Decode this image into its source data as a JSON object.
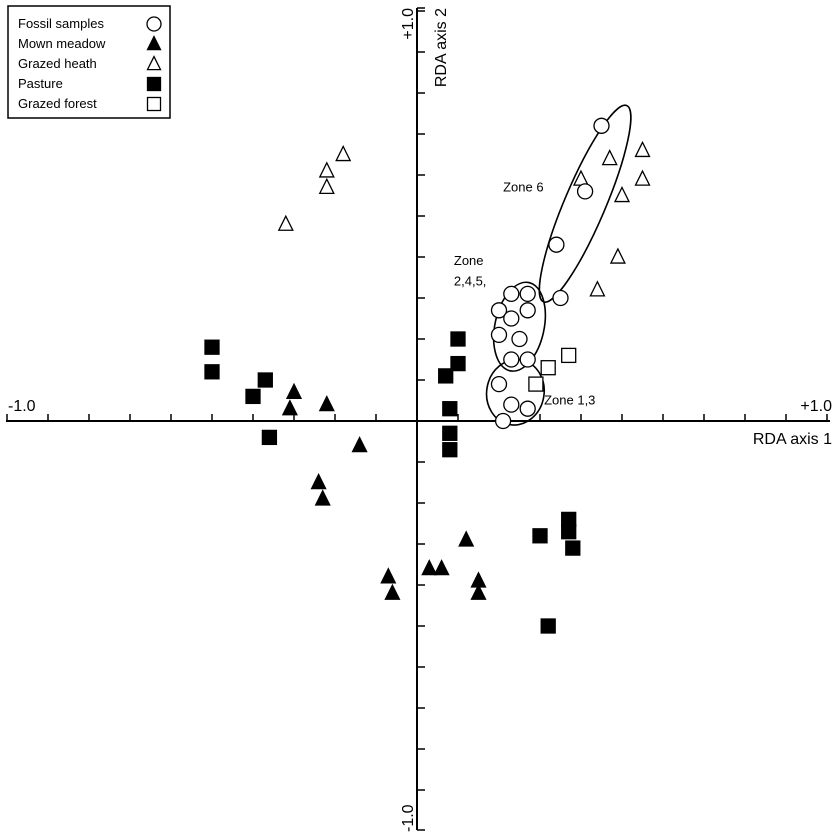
{
  "chart_data": {
    "type": "scatter",
    "title": "",
    "xlabel": "RDA axis 1",
    "ylabel": "RDA axis 2",
    "xlim": [
      -1.0,
      1.0
    ],
    "ylim": [
      -1.0,
      1.0
    ],
    "x_tick_labels": {
      "min": "-1.0",
      "max": "+1.0"
    },
    "y_tick_labels": {
      "min": "-1.0",
      "max": "+1.0"
    },
    "grid": false,
    "legend_position": "top-left",
    "series": [
      {
        "name": "Fossil samples",
        "marker": "circle-open",
        "points": [
          [
            0.45,
            0.72
          ],
          [
            0.41,
            0.56
          ],
          [
            0.34,
            0.43
          ],
          [
            0.35,
            0.3
          ],
          [
            0.23,
            0.31
          ],
          [
            0.27,
            0.31
          ],
          [
            0.2,
            0.27
          ],
          [
            0.27,
            0.27
          ],
          [
            0.23,
            0.25
          ],
          [
            0.2,
            0.21
          ],
          [
            0.25,
            0.2
          ],
          [
            0.23,
            0.15
          ],
          [
            0.27,
            0.15
          ],
          [
            0.2,
            0.09
          ],
          [
            0.23,
            0.04
          ],
          [
            0.27,
            0.03
          ],
          [
            0.21,
            -0.0
          ]
        ]
      },
      {
        "name": "Mown meadow",
        "marker": "triangle-filled",
        "points": [
          [
            -0.3,
            0.07
          ],
          [
            -0.31,
            0.03
          ],
          [
            -0.22,
            0.04
          ],
          [
            -0.14,
            -0.06
          ],
          [
            -0.24,
            -0.15
          ],
          [
            -0.23,
            -0.19
          ],
          [
            0.12,
            -0.29
          ],
          [
            0.06,
            -0.36
          ],
          [
            0.03,
            -0.36
          ],
          [
            -0.07,
            -0.38
          ],
          [
            -0.06,
            -0.42
          ],
          [
            0.15,
            -0.39
          ],
          [
            0.15,
            -0.42
          ]
        ]
      },
      {
        "name": "Grazed heath",
        "marker": "triangle-open",
        "points": [
          [
            -0.18,
            0.65
          ],
          [
            -0.22,
            0.61
          ],
          [
            -0.22,
            0.57
          ],
          [
            -0.32,
            0.48
          ],
          [
            0.47,
            0.64
          ],
          [
            0.4,
            0.59
          ],
          [
            0.55,
            0.66
          ],
          [
            0.55,
            0.59
          ],
          [
            0.5,
            0.55
          ],
          [
            0.49,
            0.4
          ],
          [
            0.44,
            0.32
          ]
        ]
      },
      {
        "name": "Pasture",
        "marker": "square-filled",
        "points": [
          [
            -0.5,
            0.18
          ],
          [
            -0.5,
            0.12
          ],
          [
            -0.37,
            0.1
          ],
          [
            -0.4,
            0.06
          ],
          [
            -0.36,
            -0.04
          ],
          [
            0.1,
            0.2
          ],
          [
            0.1,
            0.14
          ],
          [
            0.07,
            0.11
          ],
          [
            0.08,
            0.03
          ],
          [
            0.08,
            -0.03
          ],
          [
            0.08,
            -0.07
          ],
          [
            0.3,
            -0.28
          ],
          [
            0.37,
            -0.24
          ],
          [
            0.37,
            -0.27
          ],
          [
            0.38,
            -0.31
          ],
          [
            0.32,
            -0.5
          ]
        ]
      },
      {
        "name": "Grazed forest",
        "marker": "square-open",
        "points": [
          [
            0.37,
            0.16
          ],
          [
            0.32,
            0.13
          ],
          [
            0.29,
            0.09
          ]
        ]
      }
    ],
    "annotations": [
      {
        "text": "Zone 6",
        "x": 0.21,
        "y": 0.56
      },
      {
        "text": "Zone",
        "x": 0.09,
        "y": 0.38
      },
      {
        "text": "2,4,5,",
        "x": 0.09,
        "y": 0.33
      },
      {
        "text": "Zone 1,3",
        "x": 0.31,
        "y": 0.04
      }
    ],
    "zone_outlines": [
      {
        "label": "Zone 6",
        "center": [
          0.41,
          0.53
        ],
        "half_length": 0.26,
        "half_width": 0.05,
        "angle_deg": 67
      },
      {
        "label": "Zone 2,4,5",
        "center": [
          0.25,
          0.23
        ],
        "half_length": 0.11,
        "half_width": 0.06,
        "angle_deg": 78
      },
      {
        "label": "Zone 1,3",
        "center": [
          0.24,
          0.07
        ],
        "half_length": 0.08,
        "half_width": 0.07,
        "angle_deg": 80
      }
    ]
  }
}
